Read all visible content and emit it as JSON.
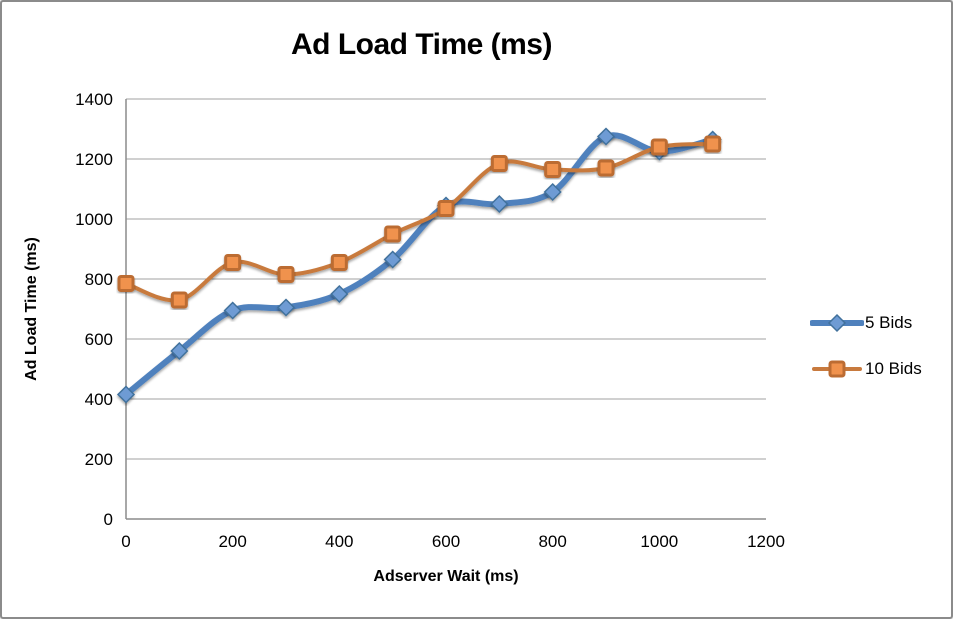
{
  "window": {
    "background": "#ffffff",
    "border_color": "#8b8b8b"
  },
  "chart_data": {
    "type": "line",
    "title": "Ad Load Time (ms)",
    "xlabel": "Adserver Wait (ms)",
    "ylabel": "Ad Load Time (ms)",
    "x": [
      0,
      100,
      200,
      300,
      400,
      500,
      600,
      700,
      800,
      900,
      1000,
      1100
    ],
    "series": [
      {
        "name": "5 Bids",
        "values": [
          415,
          560,
          695,
          705,
          750,
          865,
          1045,
          1050,
          1090,
          1275,
          1225,
          1265
        ],
        "line_color": "#4f81bd",
        "line_width": 6,
        "marker": "diamond",
        "marker_fill": "#6e9bd4",
        "marker_stroke": "#41719c"
      },
      {
        "name": "10 Bids",
        "values": [
          785,
          730,
          855,
          815,
          855,
          950,
          1035,
          1185,
          1165,
          1170,
          1240,
          1250
        ],
        "line_color": "#c87a3e",
        "line_width": 4,
        "marker": "square",
        "marker_fill": "#f0924d",
        "marker_stroke": "#bc6c33"
      }
    ],
    "xlim": [
      0,
      1200
    ],
    "ylim": [
      0,
      1400
    ],
    "x_ticks": [
      0,
      200,
      400,
      600,
      800,
      1000,
      1200
    ],
    "y_ticks": [
      0,
      200,
      400,
      600,
      800,
      1000,
      1200,
      1400
    ],
    "grid": "horizontal",
    "gridline_color": "#a0a0a0",
    "axis_line_color": "#8c8c8c",
    "tick_label_color": "#000000",
    "tick_font_size": 17,
    "legend_position": "right",
    "smoothed_lines": true
  }
}
